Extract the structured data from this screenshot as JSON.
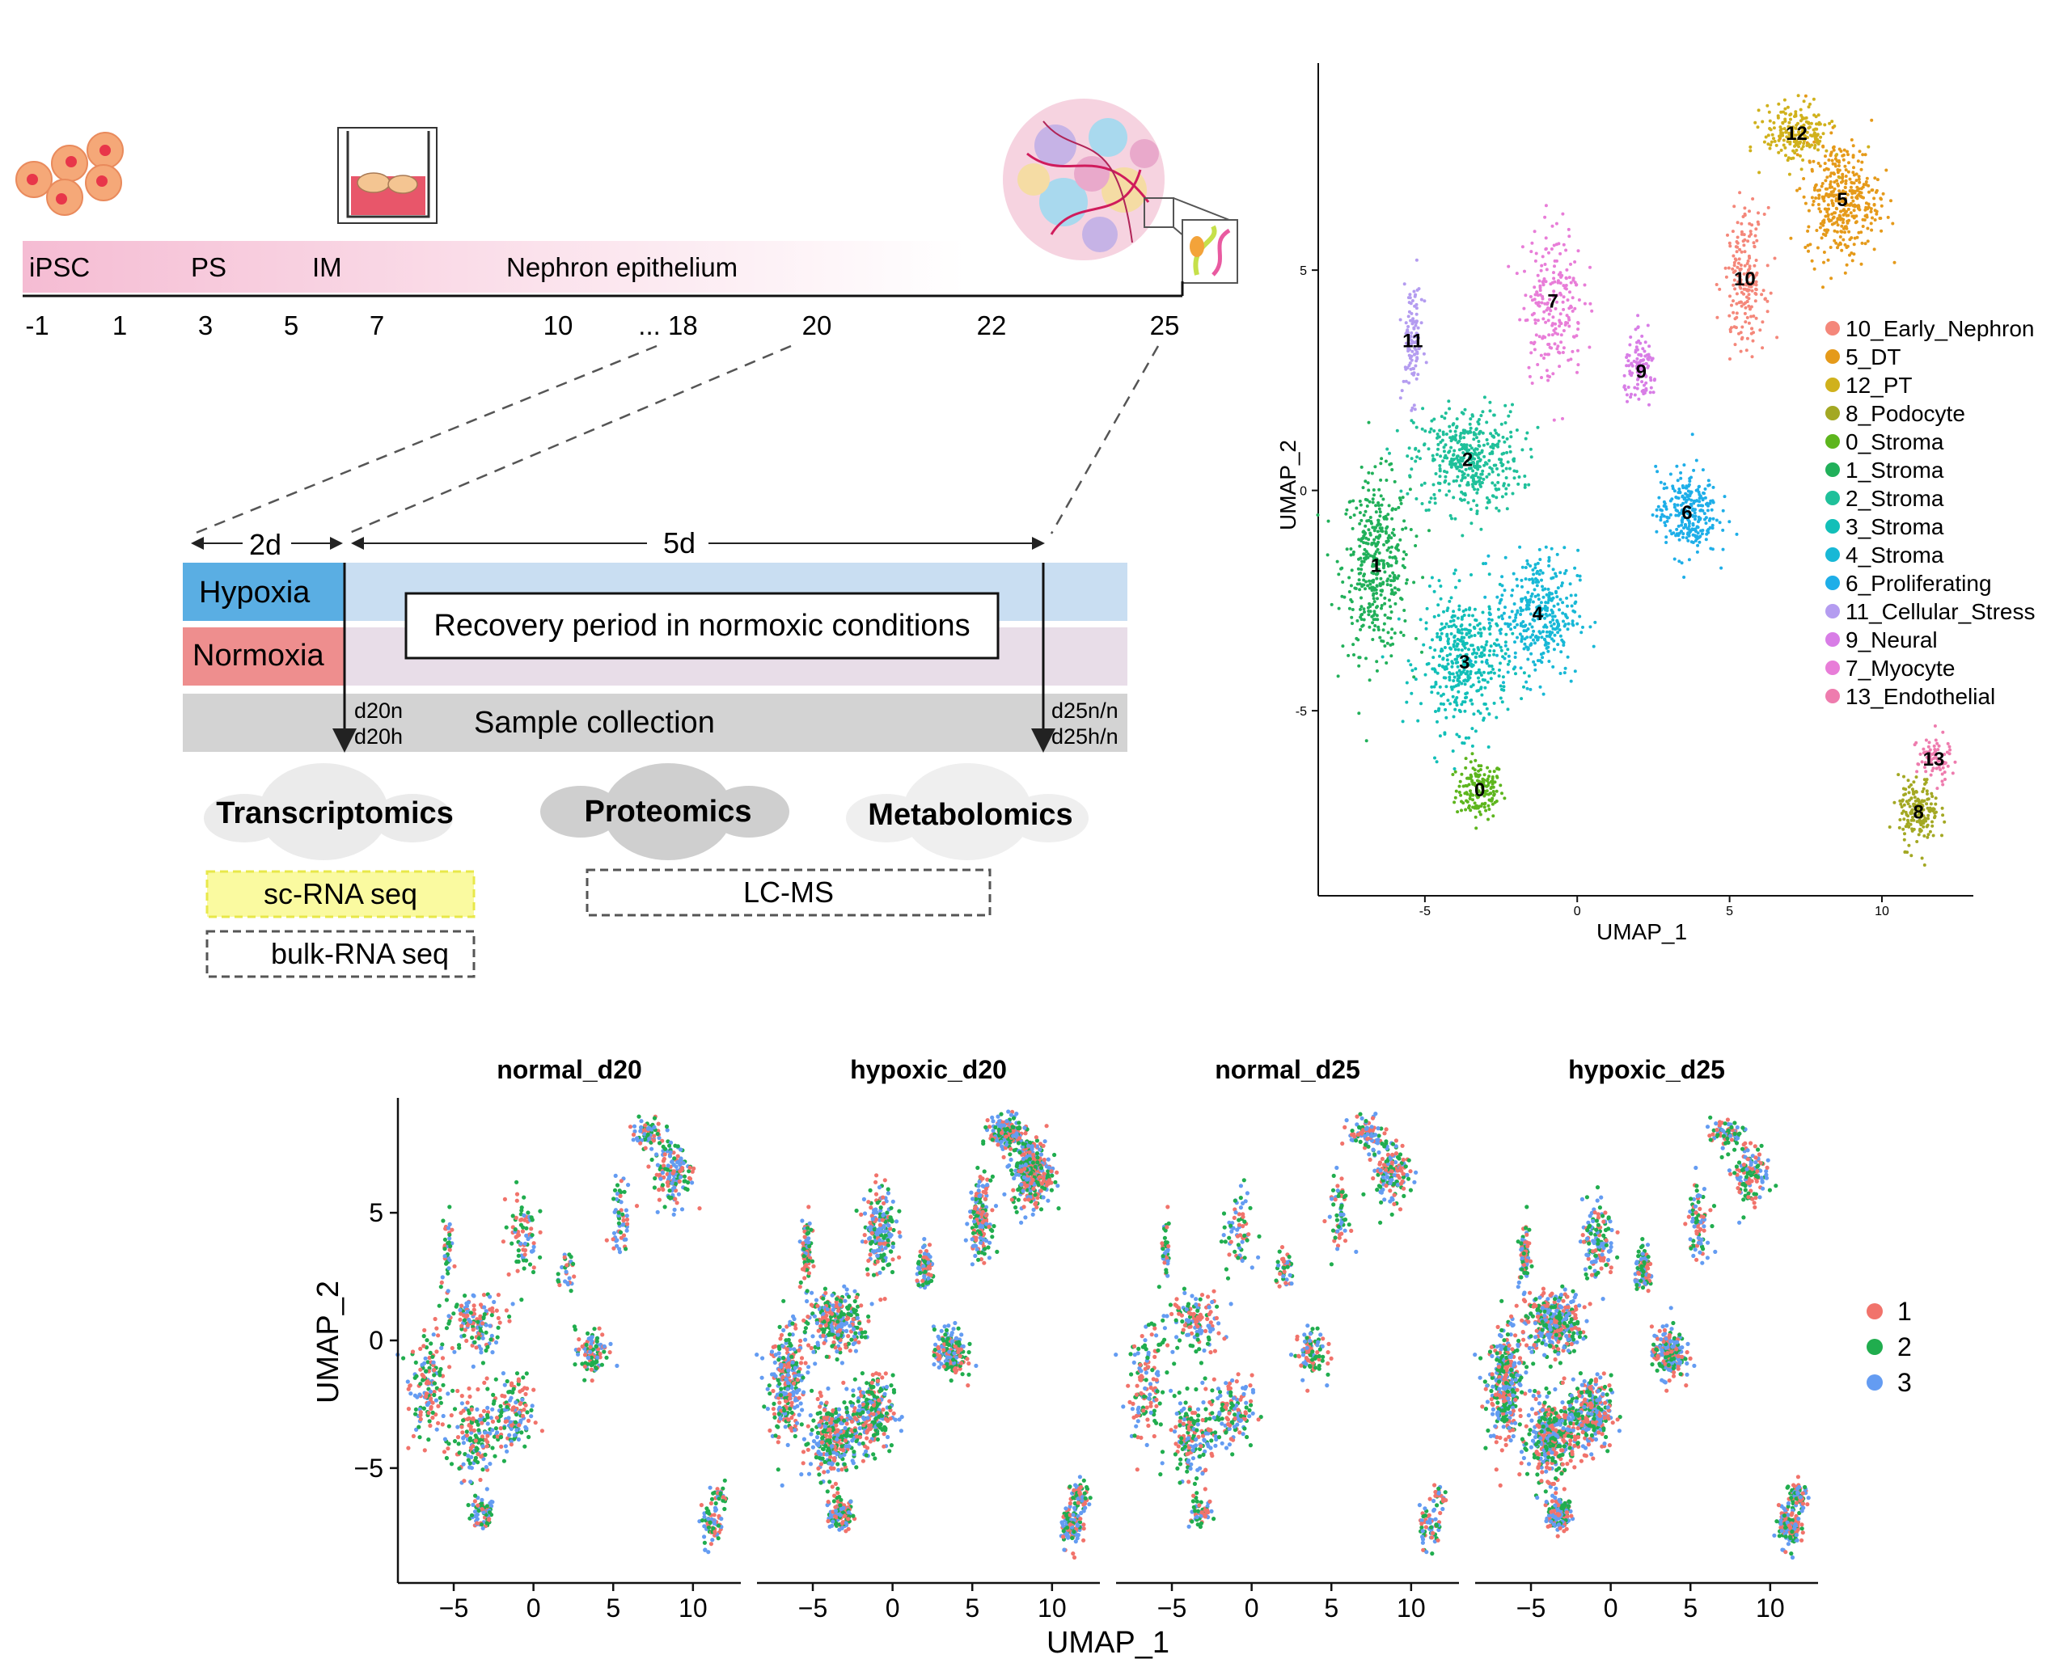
{
  "timeline": {
    "stages": [
      "iPSC",
      "PS",
      "IM",
      "Nephron epithelium"
    ],
    "days": [
      "-1",
      "1",
      "3",
      "5",
      "7",
      "10",
      "... 18",
      "20",
      "22",
      "25"
    ]
  },
  "protocol": {
    "dur_short": "2d",
    "dur_long": "5d",
    "hypoxia": "Hypoxia",
    "normoxia": "Normoxia",
    "recovery": "Recovery period in normoxic conditions",
    "sample_collection": "Sample collection",
    "d20_labels": [
      "d20n",
      "d20h"
    ],
    "d25_labels": [
      "d25n/n",
      "d25h/n"
    ],
    "colors": {
      "hypoxia": "#5aaee3",
      "normoxia": "#ee8e8e",
      "hyp_band": "#c9def2",
      "norm_band": "#e8dde8",
      "collect": "#d3d3d3"
    }
  },
  "omics": {
    "transcriptomics": "Transcriptomics",
    "proteomics": "Proteomics",
    "metabolomics": "Metabolomics",
    "sc_rna": "sc-RNA seq",
    "bulk_rna": "bulk-RNA seq",
    "lcms": "LC-MS"
  },
  "chart_data": [
    {
      "type": "scatter",
      "xlabel": "UMAP_1",
      "ylabel": "UMAP_2",
      "xticks": [
        "-5",
        "0",
        "5",
        "10"
      ],
      "yticks": [
        "5",
        "0",
        "-5"
      ],
      "xlim": [
        -8.5,
        13
      ],
      "ylim": [
        -9.2,
        9.7
      ],
      "clusters": [
        {
          "label": "0",
          "name": "0_Stroma",
          "color": "#5db51d",
          "center": [
            -3.2,
            -6.8
          ]
        },
        {
          "label": "1",
          "name": "1_Stroma",
          "color": "#21b05a",
          "center": [
            -6.6,
            -1.7
          ]
        },
        {
          "label": "2",
          "name": "2_Stroma",
          "color": "#1fc09a",
          "center": [
            -3.6,
            0.7
          ]
        },
        {
          "label": "3",
          "name": "3_Stroma",
          "color": "#12bfb8",
          "center": [
            -3.7,
            -3.9
          ]
        },
        {
          "label": "4",
          "name": "4_Stroma",
          "color": "#18b8d6",
          "center": [
            -1.3,
            -2.8
          ]
        },
        {
          "label": "5",
          "name": "5_DT",
          "color": "#e59a1a",
          "center": [
            8.7,
            6.6
          ]
        },
        {
          "label": "6",
          "name": "6_Proliferating",
          "color": "#1eaee8",
          "center": [
            3.6,
            -0.5
          ]
        },
        {
          "label": "7",
          "name": "7_Myocyte",
          "color": "#e87dd8",
          "center": [
            -0.8,
            4.3
          ]
        },
        {
          "label": "8",
          "name": "8_Podocyte",
          "color": "#a3a823",
          "center": [
            11.2,
            -7.3
          ]
        },
        {
          "label": "9",
          "name": "9_Neural",
          "color": "#d87de6",
          "center": [
            2.1,
            2.7
          ]
        },
        {
          "label": "10",
          "name": "10_Early_Nephron",
          "color": "#f4877a",
          "center": [
            5.5,
            4.8
          ]
        },
        {
          "label": "11",
          "name": "11_Cellular_Stress",
          "color": "#b49cf0",
          "center": [
            -5.4,
            3.4
          ]
        },
        {
          "label": "12",
          "name": "12_PT",
          "color": "#d0b11c",
          "center": [
            7.2,
            8.1
          ]
        },
        {
          "label": "13",
          "name": "13_Endothelial",
          "color": "#ee7cae",
          "center": [
            11.7,
            -6.1
          ]
        }
      ],
      "legend": [
        "10_Early_Nephron",
        "5_DT",
        "12_PT",
        "8_Podocyte",
        "0_Stroma",
        "1_Stroma",
        "2_Stroma",
        "3_Stroma",
        "4_Stroma",
        "6_Proliferating",
        "11_Cellular_Stress",
        "9_Neural",
        "7_Myocyte",
        "13_Endothelial"
      ],
      "legend_placement": "right"
    },
    {
      "type": "scatter",
      "facets": [
        "normal_d20",
        "hypoxic_d20",
        "normal_d25",
        "hypoxic_d25"
      ],
      "xlabel": "UMAP_1",
      "ylabel": "UMAP_2",
      "xticks": [
        "−5",
        "0",
        "5",
        "10"
      ],
      "yticks": [
        "5",
        "0",
        "−5"
      ],
      "xlim": [
        -8.5,
        13
      ],
      "ylim": [
        -9.5,
        9.5
      ],
      "series": [
        {
          "name": "1",
          "color": "#f1736b"
        },
        {
          "name": "2",
          "color": "#20ad4e"
        },
        {
          "name": "3",
          "color": "#649cf2"
        }
      ],
      "legend_placement": "right"
    }
  ]
}
